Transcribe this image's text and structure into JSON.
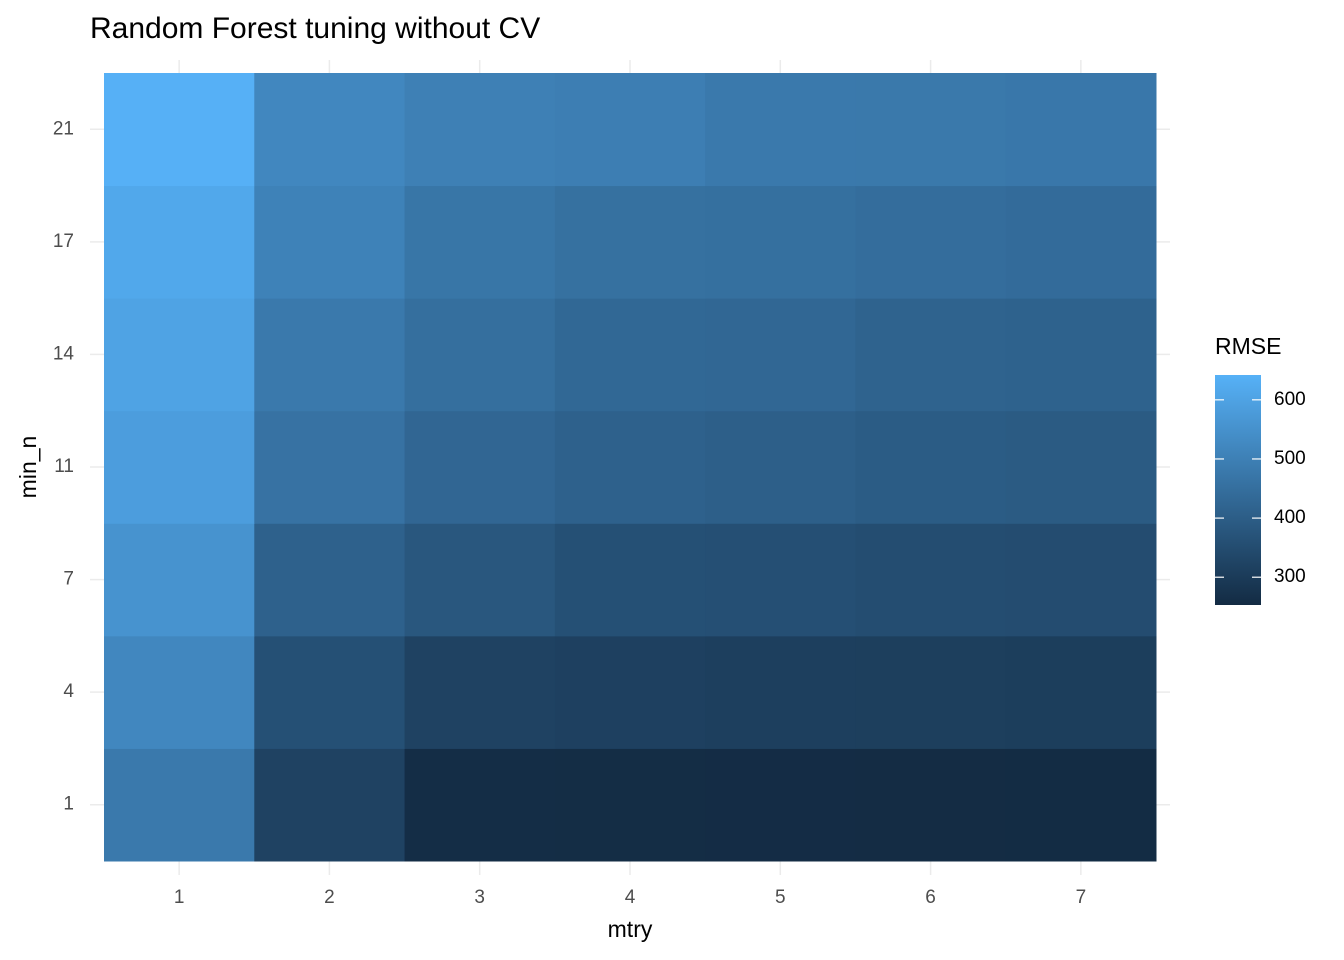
{
  "chart_data": {
    "type": "heatmap",
    "title": "Random Forest tuning without CV",
    "xlabel": "mtry",
    "ylabel": "min_n",
    "x": [
      1,
      2,
      3,
      4,
      5,
      6,
      7
    ],
    "y": [
      1,
      4,
      7,
      11,
      14,
      17,
      21
    ],
    "z": [
      [
        480,
        320,
        260,
        258,
        257,
        256,
        255
      ],
      [
        520,
        360,
        320,
        315,
        312,
        310,
        308
      ],
      [
        555,
        410,
        380,
        360,
        358,
        352,
        350
      ],
      [
        585,
        460,
        425,
        410,
        405,
        395,
        392
      ],
      [
        600,
        480,
        450,
        430,
        428,
        415,
        412
      ],
      [
        615,
        505,
        470,
        455,
        452,
        445,
        440
      ],
      [
        640,
        520,
        500,
        495,
        480,
        478,
        475
      ]
    ],
    "legend_title": "RMSE",
    "colormap": [
      "#132B43",
      "#56B1F7"
    ],
    "clim": [
      253,
      642
    ],
    "colorbar_ticks": [
      300,
      400,
      500,
      600
    ],
    "grid": true
  }
}
